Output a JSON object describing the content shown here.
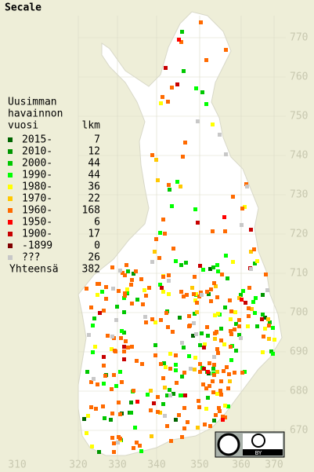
{
  "title": "Secale",
  "legend": {
    "header": [
      "Uusimman",
      "havainnon",
      "vuosi"
    ],
    "count_header": "lkm",
    "rows": [
      {
        "label": "2015-",
        "count": 7,
        "color": "#006400"
      },
      {
        "label": "2010-",
        "count": 12,
        "color": "#009600"
      },
      {
        "label": "2000-",
        "count": 44,
        "color": "#00c800"
      },
      {
        "label": "1990-",
        "count": 44,
        "color": "#00ff00"
      },
      {
        "label": "1980-",
        "count": 36,
        "color": "#ffff00"
      },
      {
        "label": "1970-",
        "count": 22,
        "color": "#ffc800"
      },
      {
        "label": "1960-",
        "count": 168,
        "color": "#ff6a00"
      },
      {
        "label": "1950-",
        "count": 6,
        "color": "#ff0000"
      },
      {
        "label": "1900-",
        "count": 17,
        "color": "#c80000"
      },
      {
        "label": "-1899",
        "count": 0,
        "color": "#800000"
      },
      {
        "label": "???",
        "count": 26,
        "color": "#c8c8c8"
      }
    ],
    "total_label": "Yhteensä",
    "total": 382
  },
  "grid": {
    "x_labels": [
      310,
      320,
      330,
      340,
      350,
      360,
      370
    ],
    "y_labels": [
      770,
      760,
      750,
      740,
      730,
      720,
      710,
      700,
      690,
      680,
      670
    ]
  },
  "license": "BY"
}
